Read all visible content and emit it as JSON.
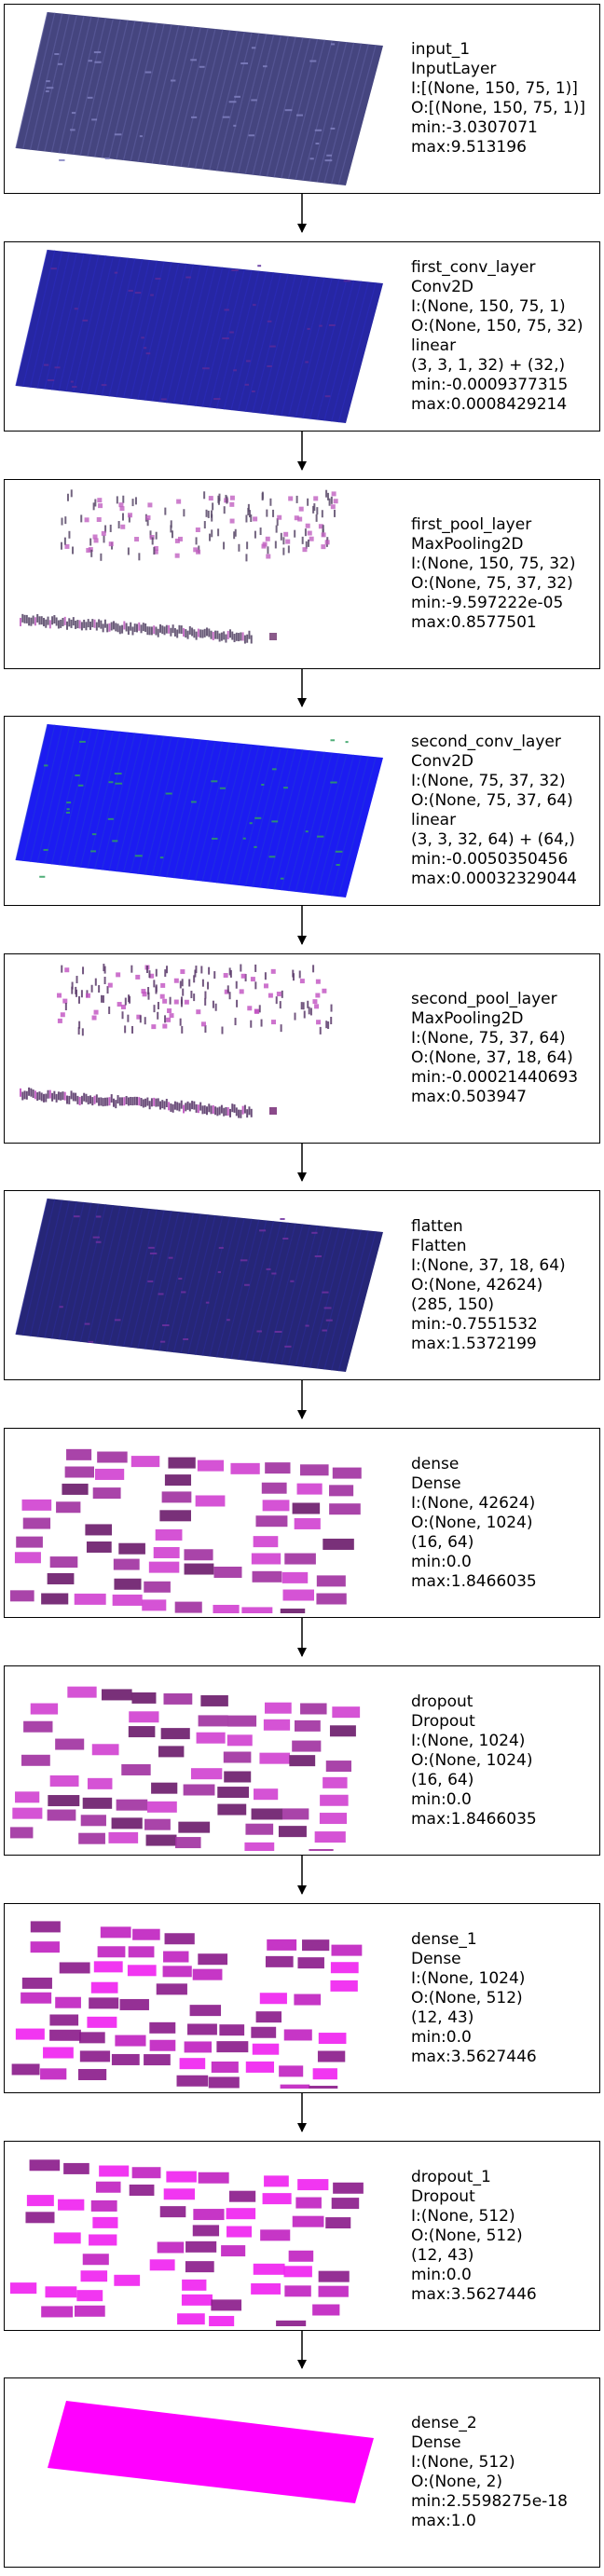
{
  "layers": [
    {
      "lines": [
        "input_1",
        "InputLayer",
        "I:[(None, 150, 75, 1)]",
        "O:[(None, 150, 75, 1)]",
        "min:-3.0307071",
        "max:9.513196"
      ],
      "viz": "grid",
      "palette": [
        "#3b3b78",
        "#5a5a9a",
        "#8080c0"
      ]
    },
    {
      "lines": [
        "first_conv_layer",
        "Conv2D",
        "I:(None, 150, 75, 1)",
        "O:(None, 150, 75, 32)",
        "linear",
        "(3, 3, 1, 32) + (32,)",
        "min:-0.0009377315",
        "max:0.0008429214"
      ],
      "viz": "grid",
      "palette": [
        "#1a1a9e",
        "#2a2ab8",
        "#5a2a9a"
      ]
    },
    {
      "lines": [
        "first_pool_layer",
        "MaxPooling2D",
        "I:(None, 150, 75, 32)",
        "O:(None, 75, 37, 32)",
        "min:-9.597222e-05",
        "max:0.8577501"
      ],
      "viz": "sparse",
      "palette": [
        "#5a4a6a",
        "#8a5a8a",
        "#c060c0"
      ]
    },
    {
      "lines": [
        "second_conv_layer",
        "Conv2D",
        "I:(None, 75, 37, 32)",
        "O:(None, 75, 37, 64)",
        "linear",
        "(3, 3, 32, 64) + (64,)",
        "min:-0.0050350456",
        "max:0.00032329044"
      ],
      "viz": "grid",
      "palette": [
        "#1010f0",
        "#2030e0",
        "#30a060"
      ]
    },
    {
      "lines": [
        "second_pool_layer",
        "MaxPooling2D",
        "I:(None, 75, 37, 64)",
        "O:(None, 37, 18, 64)",
        "min:-0.00021440693",
        "max:0.503947"
      ],
      "viz": "sparse",
      "palette": [
        "#5a3a6a",
        "#8a4a8a",
        "#c050c0"
      ]
    },
    {
      "lines": [
        "flatten",
        "Flatten",
        "I:(None, 37, 18, 64)",
        "O:(None, 42624)",
        "(285, 150)",
        "min:-0.7551532",
        "max:1.5372199"
      ],
      "viz": "grid",
      "palette": [
        "#1a1a70",
        "#2a2a90",
        "#7030a0"
      ]
    },
    {
      "lines": [
        "dense",
        "Dense",
        "I:(None, 42624)",
        "O:(None, 1024)",
        "(16, 64)",
        "min:0.0",
        "max:1.8466035"
      ],
      "viz": "blocks",
      "palette": [
        "#6a1a6a",
        "#a030a0",
        "#d040d0"
      ]
    },
    {
      "lines": [
        "dropout",
        "Dropout",
        "I:(None, 1024)",
        "O:(None, 1024)",
        "(16, 64)",
        "min:0.0",
        "max:1.8466035"
      ],
      "viz": "blocks",
      "palette": [
        "#6a1a6a",
        "#a030a0",
        "#d040d0"
      ]
    },
    {
      "lines": [
        "dense_1",
        "Dense",
        "I:(None, 1024)",
        "O:(None, 512)",
        "(12, 43)",
        "min:0.0",
        "max:3.5627446"
      ],
      "viz": "blocks",
      "palette": [
        "#8a1a8a",
        "#c020c0",
        "#f020f0"
      ]
    },
    {
      "lines": [
        "dropout_1",
        "Dropout",
        "I:(None, 512)",
        "O:(None, 512)",
        "(12, 43)",
        "min:0.0",
        "max:3.5627446"
      ],
      "viz": "blocks",
      "palette": [
        "#8a1a8a",
        "#c020c0",
        "#f020f0"
      ]
    },
    {
      "lines": [
        "dense_2",
        "Dense",
        "I:(None, 512)",
        "O:(None, 2)",
        "min:2.5598275e-18",
        "max:1.0"
      ],
      "viz": "solid",
      "palette": [
        "#ff00ff",
        "#f010f0",
        "#ff00ff"
      ]
    }
  ]
}
